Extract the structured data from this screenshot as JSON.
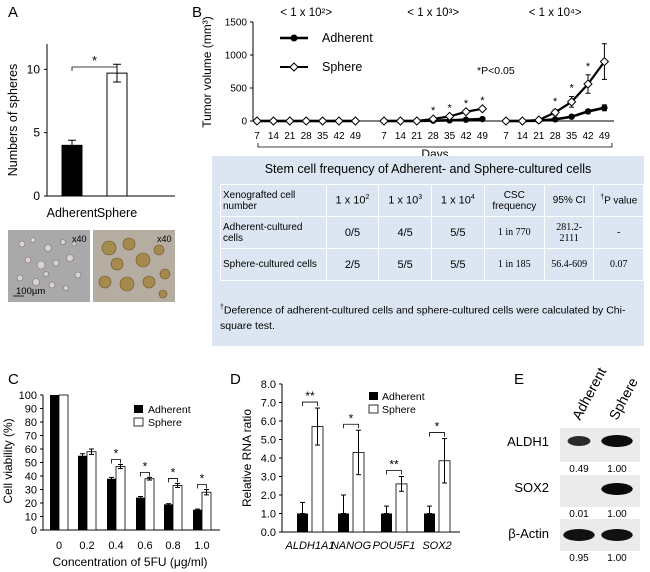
{
  "panels": {
    "A": "A",
    "B": "B",
    "C": "C",
    "D": "D",
    "E": "E"
  },
  "panelA": {
    "chart_data": {
      "type": "bar",
      "categories": [
        "Adherent",
        "Sphere"
      ],
      "values": [
        4.0,
        9.7
      ],
      "errors": [
        0.4,
        0.7
      ],
      "fills": [
        "#000000",
        "#ffffff"
      ],
      "ylabel": "Numbers of spheres",
      "ylim": [
        0,
        12
      ],
      "yticks": [
        0,
        5,
        10
      ],
      "significance": "*"
    },
    "photo_left_label": "x40",
    "photo_right_label": "x40",
    "scale_label": "100µm"
  },
  "panelB": {
    "chart_data": {
      "type": "line",
      "ylabel": "Tumor volume (mm³)",
      "xlabel": "Days",
      "ylim": [
        0,
        1500
      ],
      "yticks": [
        0,
        500,
        1000,
        1500
      ],
      "day_ticks": [
        "7",
        "14",
        "21",
        "28",
        "35",
        "42",
        "49"
      ],
      "groups": [
        {
          "title": "< 1 x 10²>",
          "series": [
            {
              "name": "Adherent",
              "values": [
                0,
                0,
                0,
                0,
                0,
                0,
                0
              ]
            },
            {
              "name": "Sphere",
              "values": [
                0,
                0,
                0,
                0,
                0,
                0,
                0
              ]
            }
          ],
          "stars": []
        },
        {
          "title": "< 1 x 10³>",
          "series": [
            {
              "name": "Adherent",
              "values": [
                0,
                0,
                0,
                5,
                10,
                20,
                30
              ]
            },
            {
              "name": "Sphere",
              "values": [
                0,
                0,
                0,
                30,
                70,
                140,
                185
              ]
            }
          ],
          "stars": [
            3,
            4,
            5,
            6
          ]
        },
        {
          "title": "< 1 x 10⁴>",
          "series": [
            {
              "name": "Adherent",
              "values": [
                0,
                0,
                5,
                25,
                65,
                145,
                200
              ],
              "errors": [
                0,
                0,
                0,
                10,
                20,
                30,
                45
              ]
            },
            {
              "name": "Sphere",
              "values": [
                0,
                0,
                15,
                130,
                290,
                560,
                900
              ],
              "errors": [
                0,
                0,
                0,
                40,
                80,
                140,
                270
              ]
            }
          ],
          "stars": [
            3,
            4,
            5
          ]
        }
      ],
      "legend": [
        "Adherent",
        "Sphere"
      ],
      "note": "*P<0.05"
    }
  },
  "table": {
    "caption": "Stem cell frequency of Adherent- and Sphere-cultured cells",
    "header": {
      "c0": "Xenografted cell number",
      "c1_base": "1 x 10",
      "c1_exp": "2",
      "c2_base": "1 x 10",
      "c2_exp": "3",
      "c3_base": "1 x 10",
      "c3_exp": "4",
      "c4": "CSC frequency",
      "c5": "95% CI",
      "c6_mark": "†",
      "c6": "P value"
    },
    "rows": [
      {
        "c0": "Adherent-cultured cells",
        "c1": "0/5",
        "c2": "4/5",
        "c3": "5/5",
        "c4": "1 in 770",
        "c5": "281.2-2111",
        "c6": "-"
      },
      {
        "c0": "Sphere-cultured cells",
        "c1": "2/5",
        "c2": "5/5",
        "c3": "5/5",
        "c4": "1 in 185",
        "c5": "56.4-609",
        "c6": "0.07"
      }
    ],
    "footnote_mark": "†",
    "footnote": "Deference of adherent-cultured cells and sphere-cultured cells were calculated by Chi-square test."
  },
  "panelC": {
    "chart_data": {
      "type": "bar",
      "categories": [
        "0",
        "0.2",
        "0.4",
        "0.6",
        "0.8",
        "1.0"
      ],
      "series": [
        {
          "name": "Adherent",
          "values": [
            100,
            55,
            38,
            24,
            19,
            15
          ],
          "errors": [
            0,
            1.5,
            1.0,
            0.8,
            0.5,
            0.5
          ]
        },
        {
          "name": "Sphere",
          "values": [
            100,
            58,
            47,
            38,
            33,
            28
          ],
          "errors": [
            0,
            2.0,
            1.5,
            1.0,
            1.5,
            2.0
          ]
        }
      ],
      "ylabel": "Cell viability (%)",
      "xlabel": "Concentration of 5FU (μg/ml)",
      "ylim": [
        0,
        100
      ],
      "yticks": [
        0,
        10,
        20,
        30,
        40,
        50,
        60,
        70,
        80,
        90,
        100
      ],
      "significance": [
        "",
        "",
        "*",
        "*",
        "*",
        "*"
      ]
    }
  },
  "panelD": {
    "chart_data": {
      "type": "bar",
      "categories": [
        "ALDH1A1",
        "NANOG",
        "POU5F1",
        "SOX2"
      ],
      "series": [
        {
          "name": "Adherent",
          "values": [
            1.0,
            1.0,
            1.0,
            1.0
          ],
          "errors": [
            0.6,
            1.0,
            0.4,
            0.4
          ]
        },
        {
          "name": "Sphere",
          "values": [
            5.7,
            4.3,
            2.6,
            3.85
          ],
          "errors": [
            1.0,
            1.2,
            0.4,
            1.2
          ]
        }
      ],
      "ylabel": "Relative RNA ratio",
      "ylim": [
        0,
        8
      ],
      "yticks": [
        "0.0",
        "1.0",
        "2.0",
        "3.0",
        "4.0",
        "5.0",
        "6.0",
        "7.0",
        "8.0"
      ],
      "significance": [
        "**",
        "*",
        "**",
        "*"
      ]
    }
  },
  "panelE": {
    "lanes": [
      "Adherent",
      "Sphere"
    ],
    "blots": [
      {
        "label": "ALDH1",
        "values": [
          "0.49",
          "1.00"
        ]
      },
      {
        "label": "SOX2",
        "values": [
          "0.01",
          "1.00"
        ]
      },
      {
        "label": "β-Actin",
        "values": [
          "0.95",
          "1.00"
        ]
      }
    ]
  }
}
